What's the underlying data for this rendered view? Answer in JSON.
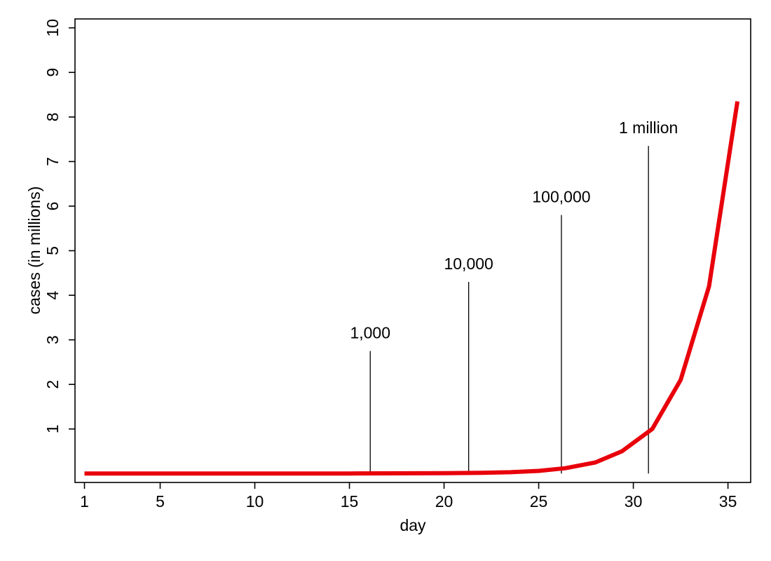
{
  "chart_data": {
    "type": "line",
    "title": "",
    "xlabel": "day",
    "ylabel": "cases (in millions)",
    "xlim": [
      0.5,
      36.2
    ],
    "ylim": [
      -0.2,
      10.2
    ],
    "x_ticks": [
      1,
      5,
      10,
      15,
      20,
      25,
      30,
      35
    ],
    "y_ticks": [
      1,
      2,
      3,
      4,
      5,
      6,
      7,
      8,
      9,
      10
    ],
    "grid": false,
    "legend": "none",
    "series": [
      {
        "color": "#e8000b",
        "x": [
          1,
          5,
          10,
          15,
          20,
          22,
          23.5,
          25,
          26.4,
          28,
          29.4,
          31,
          32.5,
          34,
          35.5
        ],
        "y": [
          0,
          0,
          0,
          0.001,
          0.008,
          0.016,
          0.03,
          0.06,
          0.12,
          0.25,
          0.5,
          1.0,
          2.1,
          4.2,
          8.35
        ]
      }
    ],
    "annotations": [
      {
        "label": "1,000",
        "x": 16.1,
        "y_top": 2.75
      },
      {
        "label": "10,000",
        "x": 21.3,
        "y_top": 4.3
      },
      {
        "label": "100,000",
        "x": 26.2,
        "y_top": 5.8
      },
      {
        "label": "1 million",
        "x": 30.8,
        "y_top": 7.35
      }
    ]
  }
}
